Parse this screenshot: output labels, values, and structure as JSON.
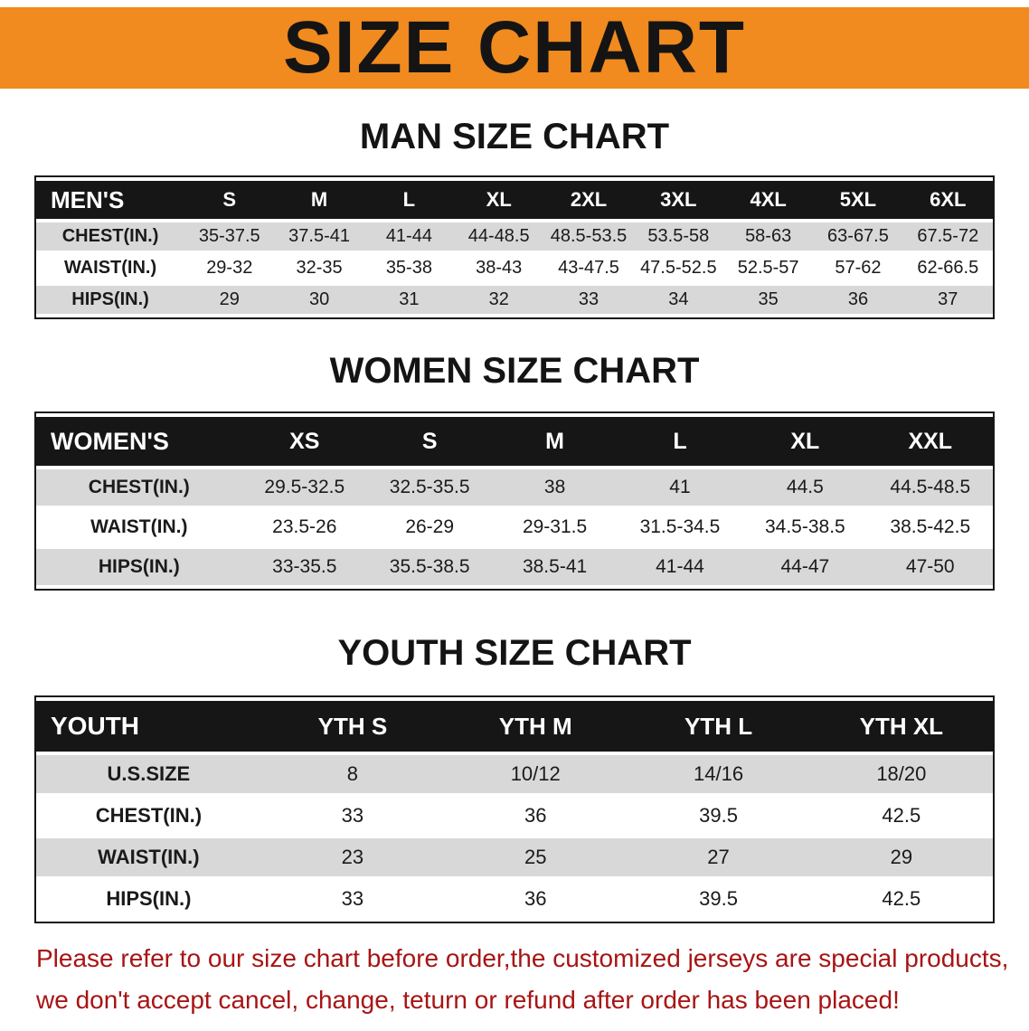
{
  "banner": {
    "title": "SIZE CHART"
  },
  "colors": {
    "banner_orange": "#f18a1f",
    "header_black": "#161616",
    "row_gray": "#d8d8d8",
    "row_white": "#ffffff",
    "note_red": "#a81414"
  },
  "sections": [
    {
      "id": "men",
      "heading": "MAN SIZE CHART",
      "table": {
        "header": [
          "MEN'S",
          "S",
          "M",
          "L",
          "XL",
          "2XL",
          "3XL",
          "4XL",
          "5XL",
          "6XL"
        ],
        "rows": [
          [
            "CHEST(IN.)",
            "35-37.5",
            "37.5-41",
            "41-44",
            "44-48.5",
            "48.5-53.5",
            "53.5-58",
            "58-63",
            "63-67.5",
            "67.5-72"
          ],
          [
            "WAIST(IN.)",
            "29-32",
            "32-35",
            "35-38",
            "38-43",
            "43-47.5",
            "47.5-52.5",
            "52.5-57",
            "57-62",
            "62-66.5"
          ],
          [
            "HIPS(IN.)",
            "29",
            "30",
            "31",
            "32",
            "33",
            "34",
            "35",
            "36",
            "37"
          ]
        ]
      }
    },
    {
      "id": "women",
      "heading": "WOMEN SIZE CHART",
      "table": {
        "header": [
          "WOMEN'S",
          "XS",
          "S",
          "M",
          "L",
          "XL",
          "XXL"
        ],
        "rows": [
          [
            "CHEST(IN.)",
            "29.5-32.5",
            "32.5-35.5",
            "38",
            "41",
            "44.5",
            "44.5-48.5"
          ],
          [
            "WAIST(IN.)",
            "23.5-26",
            "26-29",
            "29-31.5",
            "31.5-34.5",
            "34.5-38.5",
            "38.5-42.5"
          ],
          [
            "HIPS(IN.)",
            "33-35.5",
            "35.5-38.5",
            "38.5-41",
            "41-44",
            "44-47",
            "47-50"
          ]
        ]
      }
    },
    {
      "id": "youth",
      "heading": "YOUTH SIZE CHART",
      "table": {
        "header": [
          "YOUTH",
          "YTH S",
          "YTH M",
          "YTH L",
          "YTH XL"
        ],
        "rows": [
          [
            "U.S.SIZE",
            "8",
            "10/12",
            "14/16",
            "18/20"
          ],
          [
            "CHEST(IN.)",
            "33",
            "36",
            "39.5",
            "42.5"
          ],
          [
            "WAIST(IN.)",
            "23",
            "25",
            "27",
            "29"
          ],
          [
            "HIPS(IN.)",
            "33",
            "36",
            "39.5",
            "42.5"
          ]
        ]
      }
    }
  ],
  "note": {
    "line1": "Please refer to our size chart before order,the customized jerseys are special products,",
    "line2": "we don't accept cancel, change, teturn or refund after order has been placed!"
  }
}
